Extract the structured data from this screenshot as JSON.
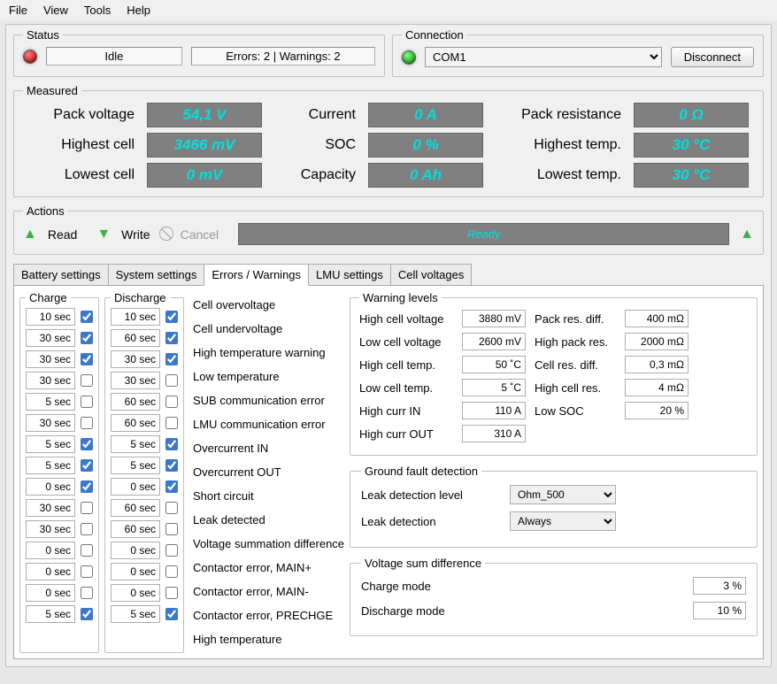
{
  "menu": {
    "file": "File",
    "view": "View",
    "tools": "Tools",
    "help": "Help"
  },
  "status": {
    "legend": "Status",
    "state": "Idle",
    "errors_warnings": "Errors: 2  |  Warnings: 2",
    "led_color": "#cc0000"
  },
  "connection": {
    "legend": "Connection",
    "port": "COM1",
    "disconnect_label": "Disconnect",
    "led_color": "#00aa00"
  },
  "measured": {
    "legend": "Measured",
    "accent_color": "#00e0e0",
    "rows": [
      {
        "l1": "Pack voltage",
        "v1": "54,1 V",
        "l2": "Current",
        "v2": "0 A",
        "l3": "Pack resistance",
        "v3": "0 Ω"
      },
      {
        "l1": "Highest cell",
        "v1": "3466 mV",
        "l2": "SOC",
        "v2": "0 %",
        "l3": "Highest temp.",
        "v3": "30 °C"
      },
      {
        "l1": "Lowest cell",
        "v1": "0 mV",
        "l2": "Capacity",
        "v2": "0 Ah",
        "l3": "Lowest temp.",
        "v3": "30 °C"
      }
    ]
  },
  "actions": {
    "legend": "Actions",
    "read": "Read",
    "write": "Write",
    "cancel": "Cancel",
    "ready": "Ready",
    "ready_color": "#00e0e0"
  },
  "tabs": {
    "battery": "Battery settings",
    "system": "System settings",
    "errors": "Errors / Warnings",
    "lmu": "LMU settings",
    "cellv": "Cell voltages"
  },
  "charge_legend": "Charge",
  "discharge_legend": "Discharge",
  "errors": [
    {
      "name": "Cell overvoltage",
      "charge": "10 sec",
      "ccb": true,
      "discharge": "10 sec",
      "dcb": true
    },
    {
      "name": "Cell undervoltage",
      "charge": "30 sec",
      "ccb": true,
      "discharge": "60 sec",
      "dcb": true
    },
    {
      "name": "High temperature warning",
      "charge": "30 sec",
      "ccb": true,
      "discharge": "30 sec",
      "dcb": true
    },
    {
      "name": "Low temperature",
      "charge": "30 sec",
      "ccb": false,
      "discharge": "30 sec",
      "dcb": false
    },
    {
      "name": "SUB communication error",
      "charge": "5 sec",
      "ccb": false,
      "discharge": "60 sec",
      "dcb": false
    },
    {
      "name": "LMU communication error",
      "charge": "30 sec",
      "ccb": false,
      "discharge": "60 sec",
      "dcb": false
    },
    {
      "name": "Overcurrent IN",
      "charge": "5 sec",
      "ccb": true,
      "discharge": "5 sec",
      "dcb": true
    },
    {
      "name": "Overcurrent OUT",
      "charge": "5 sec",
      "ccb": true,
      "discharge": "5 sec",
      "dcb": true
    },
    {
      "name": "Short circuit",
      "charge": "0 sec",
      "ccb": true,
      "discharge": "0 sec",
      "dcb": true
    },
    {
      "name": "Leak detected",
      "charge": "30 sec",
      "ccb": false,
      "discharge": "60 sec",
      "dcb": false
    },
    {
      "name": "Voltage summation difference",
      "charge": "30 sec",
      "ccb": false,
      "discharge": "60 sec",
      "dcb": false
    },
    {
      "name": "Contactor error, MAIN+",
      "charge": "0 sec",
      "ccb": false,
      "discharge": "0 sec",
      "dcb": false
    },
    {
      "name": "Contactor error, MAIN-",
      "charge": "0 sec",
      "ccb": false,
      "discharge": "0 sec",
      "dcb": false
    },
    {
      "name": "Contactor error, PRECHGE",
      "charge": "0 sec",
      "ccb": false,
      "discharge": "0 sec",
      "dcb": false
    },
    {
      "name": "High temperature",
      "charge": "5 sec",
      "ccb": true,
      "discharge": "5 sec",
      "dcb": true
    }
  ],
  "warning": {
    "legend": "Warning levels",
    "items_left": [
      {
        "label": "High cell voltage",
        "value": "3880 mV"
      },
      {
        "label": "Low cell voltage",
        "value": "2600 mV"
      },
      {
        "label": "High cell temp.",
        "value": "50 ˚C"
      },
      {
        "label": "Low cell temp.",
        "value": "5 ˚C"
      },
      {
        "label": "High curr IN",
        "value": "110 A"
      },
      {
        "label": "High curr OUT",
        "value": "310 A"
      }
    ],
    "items_right": [
      {
        "label": "Pack res. diff.",
        "value": "400 mΩ"
      },
      {
        "label": "High pack res.",
        "value": "2000 mΩ"
      },
      {
        "label": "Cell res. diff.",
        "value": "0,3 mΩ"
      },
      {
        "label": "High cell res.",
        "value": "4 mΩ"
      },
      {
        "label": "Low SOC",
        "value": "20 %"
      }
    ]
  },
  "gfd": {
    "legend": "Ground fault detection",
    "level_label": "Leak detection level",
    "level_value": "Ohm_500",
    "detect_label": "Leak detection",
    "detect_value": "Always"
  },
  "vsd": {
    "legend": "Voltage sum difference",
    "charge_label": "Charge mode",
    "charge_value": "3 %",
    "discharge_label": "Discharge mode",
    "discharge_value": "10 %"
  }
}
